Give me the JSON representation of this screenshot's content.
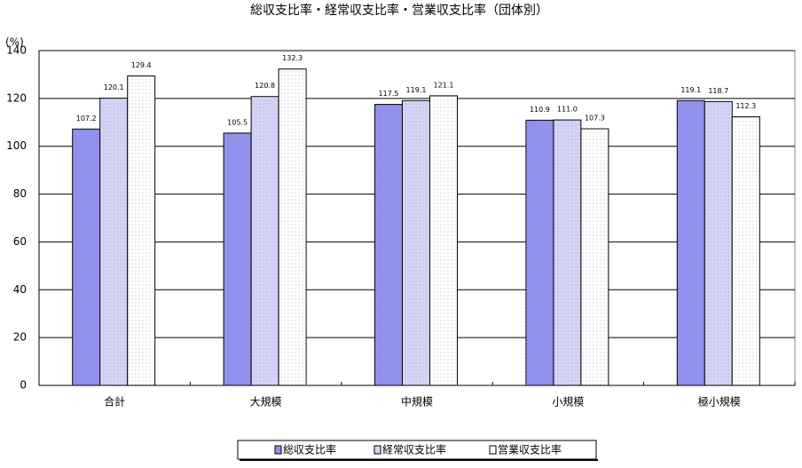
{
  "chart_data": {
    "type": "bar",
    "title": "総収支比率・経常収支比率・営業収支比率（団体別）",
    "y_label": "(%)",
    "categories": [
      "合計",
      "大規模",
      "中規模",
      "小規模",
      "極小規模"
    ],
    "series": [
      {
        "name": "総収支比率",
        "color": "#9090f0",
        "values": [
          107.2,
          105.5,
          117.5,
          110.9,
          119.1
        ],
        "value_labels": [
          "107.2",
          "105.5",
          "117.5",
          "110.9",
          "119.1"
        ]
      },
      {
        "name": "経常収支比率",
        "color": "#d4d4f8",
        "values": [
          120.1,
          120.8,
          119.1,
          111.0,
          118.7
        ],
        "value_labels": [
          "120.1",
          "120.8",
          "119.1",
          "111.0",
          "118.7"
        ]
      },
      {
        "name": "営業収支比率",
        "color": "#ffffff",
        "values": [
          129.4,
          132.3,
          121.1,
          107.3,
          112.3
        ],
        "value_labels": [
          "129.4",
          "132.3",
          "121.1",
          "107.3",
          "112.3"
        ]
      }
    ],
    "ylim": [
      0,
      140
    ],
    "yticks": [
      0,
      20,
      40,
      60,
      80,
      100,
      120,
      140
    ],
    "grid": true,
    "legend": "bottom"
  }
}
